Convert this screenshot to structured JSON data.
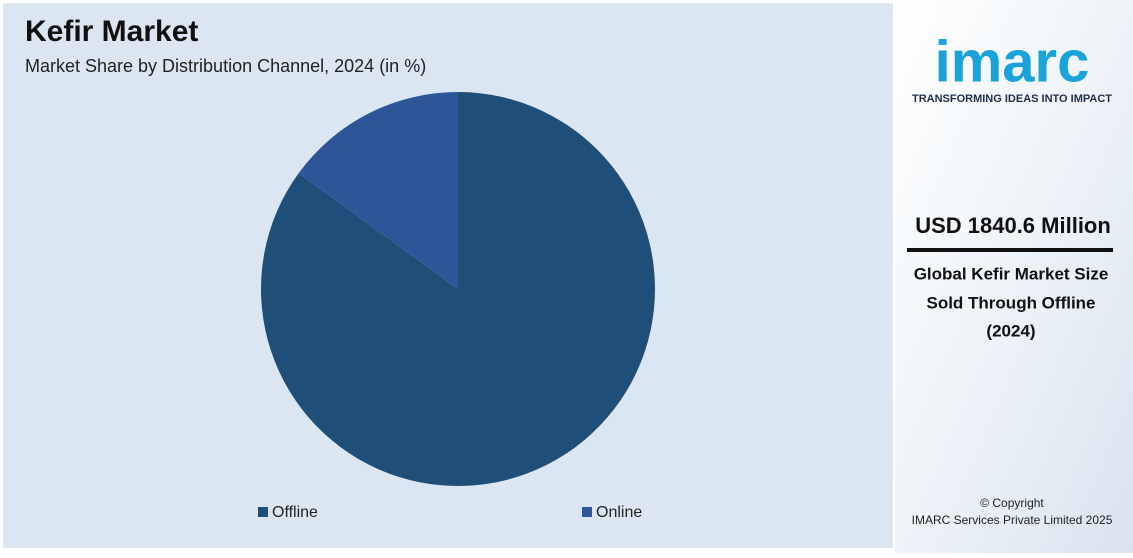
{
  "chart_data": {
    "type": "pie",
    "title": "Kefir Market",
    "subtitle": "Market Share by Distribution Channel, 2024 (in %)",
    "categories": [
      "Offline",
      "Online"
    ],
    "values": [
      85,
      15
    ],
    "colors": [
      "#1f4e79",
      "#2e5597"
    ]
  },
  "sidebar": {
    "logo": "imarc",
    "tagline": "TRANSFORMING IDEAS INTO IMPACT",
    "headline": "USD 1840.6 Million",
    "description": [
      "Global Kefir Market Size",
      "Sold Through Offline",
      "(2024)"
    ],
    "copyright": [
      "© Copyright",
      "IMARC Services Private Limited 2025"
    ]
  }
}
